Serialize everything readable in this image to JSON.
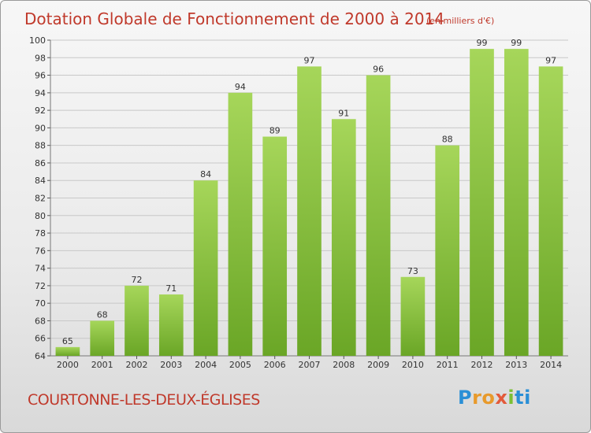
{
  "header": {
    "title": "Dotation Globale de Fonctionnement de 2000 à 2014",
    "subtitle": "(en milliers d'€)"
  },
  "footer": {
    "place": "COURTONNE-LES-DEUX-ÉGLISES",
    "logo": "Proxiti"
  },
  "colors": {
    "bar_top": "#a6d65a",
    "bar_bottom": "#6aa626",
    "title": "#c0392b",
    "grid": "#c8c8c8"
  },
  "chart_data": {
    "type": "bar",
    "title": "Dotation Globale de Fonctionnement de 2000 à 2014",
    "subtitle": "(en milliers d'€)",
    "categories": [
      "2000",
      "2001",
      "2002",
      "2003",
      "2004",
      "2005",
      "2006",
      "2007",
      "2008",
      "2009",
      "2010",
      "2011",
      "2012",
      "2013",
      "2014"
    ],
    "values": [
      65,
      68,
      72,
      71,
      84,
      94,
      89,
      97,
      91,
      96,
      73,
      88,
      99,
      99,
      97
    ],
    "ylim": [
      64,
      100
    ],
    "yticks": [
      64,
      66,
      68,
      70,
      72,
      74,
      76,
      78,
      80,
      82,
      84,
      86,
      88,
      90,
      92,
      94,
      96,
      98,
      100
    ],
    "grid": true,
    "xlabel": "",
    "ylabel": ""
  }
}
